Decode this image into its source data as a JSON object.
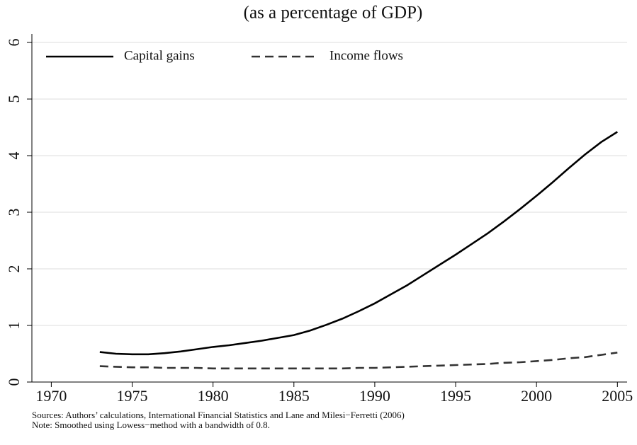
{
  "chart_data": {
    "type": "line",
    "title": "(as a percentage of GDP)",
    "notes": [
      "Sources: Authors’ calculations, International Financial Statistics and Lane and Milesi−Ferretti (2006)",
      "Note: Smoothed using Lowess−method with a bandwidth of 0.8."
    ],
    "x": [
      1973,
      1974,
      1975,
      1976,
      1977,
      1978,
      1979,
      1980,
      1981,
      1982,
      1983,
      1984,
      1985,
      1986,
      1987,
      1988,
      1989,
      1990,
      1991,
      1992,
      1993,
      1994,
      1995,
      1996,
      1997,
      1998,
      1999,
      2000,
      2001,
      2002,
      2003,
      2004,
      2005
    ],
    "series": [
      {
        "name": "Capital gains",
        "color": "#000000",
        "style": "solid",
        "values": [
          0.53,
          0.5,
          0.49,
          0.49,
          0.51,
          0.54,
          0.58,
          0.62,
          0.65,
          0.69,
          0.73,
          0.78,
          0.83,
          0.91,
          1.01,
          1.12,
          1.25,
          1.39,
          1.55,
          1.71,
          1.89,
          2.07,
          2.25,
          2.44,
          2.63,
          2.84,
          3.06,
          3.29,
          3.53,
          3.78,
          4.02,
          4.24,
          4.42
        ]
      },
      {
        "name": "Income flows",
        "color": "#333333",
        "style": "dashed",
        "values": [
          0.28,
          0.27,
          0.26,
          0.26,
          0.25,
          0.25,
          0.25,
          0.24,
          0.24,
          0.24,
          0.24,
          0.24,
          0.24,
          0.24,
          0.24,
          0.24,
          0.25,
          0.25,
          0.26,
          0.27,
          0.28,
          0.29,
          0.3,
          0.31,
          0.32,
          0.34,
          0.35,
          0.37,
          0.39,
          0.42,
          0.44,
          0.48,
          0.52
        ]
      }
    ],
    "xlim": [
      1968.8,
      2005.6
    ],
    "xticks": [
      1970,
      1975,
      1980,
      1985,
      1990,
      1995,
      2000,
      2005
    ],
    "ylim": [
      0,
      6.15
    ],
    "yticks": [
      0,
      1,
      2,
      3,
      4,
      5,
      6
    ],
    "grid": true,
    "legend": "top-left"
  }
}
